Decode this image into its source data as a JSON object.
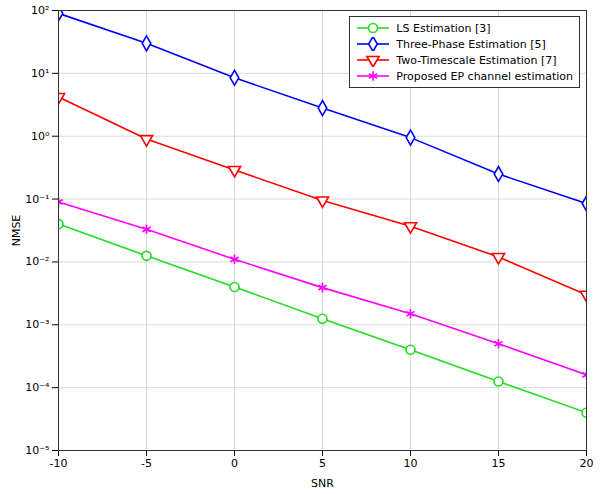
{
  "chart_data": {
    "type": "line",
    "x_label": "SNR",
    "y_label": "NMSE",
    "x": [
      -10,
      -5,
      0,
      5,
      10,
      15,
      20
    ],
    "series": [
      {
        "name": "LS Estimation [3]",
        "color": "#22dd22",
        "marker": "circle",
        "values": [
          0.04,
          0.0125,
          0.004,
          0.00125,
          0.0004,
          0.000125,
          4e-05
        ]
      },
      {
        "name": "Three-Phase Estimation [5]",
        "color": "#0000ff",
        "marker": "diamond",
        "values": [
          90,
          30,
          8.5,
          2.8,
          0.95,
          0.25,
          0.085
        ]
      },
      {
        "name": "Two-Timescale Estimation [7]",
        "color": "#ff0000",
        "marker": "triangle-down",
        "values": [
          4.2,
          0.9,
          0.29,
          0.095,
          0.037,
          0.012,
          0.003
        ]
      },
      {
        "name": "Proposed EP channel estimation",
        "color": "#ff00ff",
        "marker": "asterisk",
        "values": [
          0.09,
          0.033,
          0.011,
          0.0039,
          0.0015,
          0.0005,
          0.00016
        ]
      }
    ],
    "xlim": [
      -10,
      20
    ],
    "xticks": [
      -10,
      -5,
      0,
      5,
      10,
      15,
      20
    ],
    "ylim": [
      1e-05,
      100
    ],
    "yticks": [
      {
        "value": 1e-05,
        "label": "10⁻⁵"
      },
      {
        "value": 0.0001,
        "label": "10⁻⁴"
      },
      {
        "value": 0.001,
        "label": "10⁻³"
      },
      {
        "value": 0.01,
        "label": "10⁻²"
      },
      {
        "value": 0.1,
        "label": "10⁻¹"
      },
      {
        "value": 1,
        "label": "10⁰"
      },
      {
        "value": 10,
        "label": "10¹"
      },
      {
        "value": 100,
        "label": "10²"
      }
    ],
    "log": "y",
    "grid": true,
    "legend": "top-right"
  }
}
